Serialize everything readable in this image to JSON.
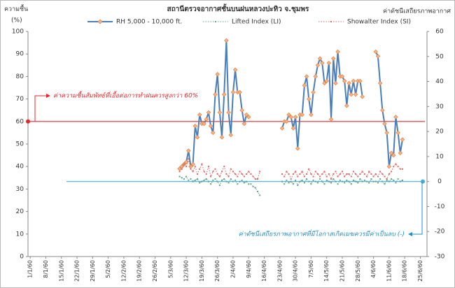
{
  "chart_data": {
    "type": "line",
    "title": "สถานีตรวจอากาศชั้นบนฝนหลวงปะทิว จ.ชุมพร",
    "y_label": [
      "ความชื้น",
      "(%)"
    ],
    "y2_label": "ค่าดัชนีเสถียรภาพอากาศ",
    "xlim": [
      -1,
      178
    ],
    "xticks": [
      {
        "value": 0,
        "label": "1/1/60"
      },
      {
        "value": 7,
        "label": "8/1/60"
      },
      {
        "value": 14,
        "label": "15/1/60"
      },
      {
        "value": 21,
        "label": "22/1/60"
      },
      {
        "value": 28,
        "label": "29/1/60"
      },
      {
        "value": 35,
        "label": "5/2/60"
      },
      {
        "value": 42,
        "label": "12/2/60"
      },
      {
        "value": 49,
        "label": "19/2/60"
      },
      {
        "value": 56,
        "label": "26/2/60"
      },
      {
        "value": 63,
        "label": "5/3/60"
      },
      {
        "value": 70,
        "label": "12/3/60"
      },
      {
        "value": 77,
        "label": "19/3/60"
      },
      {
        "value": 84,
        "label": "26/3/60"
      },
      {
        "value": 91,
        "label": "2/4/60"
      },
      {
        "value": 98,
        "label": "9/4/60"
      },
      {
        "value": 105,
        "label": "16/4/60"
      },
      {
        "value": 112,
        "label": "23/4/60"
      },
      {
        "value": 119,
        "label": "30/4/60"
      },
      {
        "value": 126,
        "label": "7/5/60"
      },
      {
        "value": 133,
        "label": "14/5/60"
      },
      {
        "value": 140,
        "label": "21/5/60"
      },
      {
        "value": 147,
        "label": "28/5/60"
      },
      {
        "value": 154,
        "label": "4/6/60"
      },
      {
        "value": 161,
        "label": "11/6/60"
      },
      {
        "value": 168,
        "label": "18/6/60"
      },
      {
        "value": 175,
        "label": "25/6/60"
      }
    ],
    "ylim": [
      0,
      100
    ],
    "yticks": [
      0,
      10,
      20,
      30,
      40,
      50,
      60,
      70,
      80,
      90,
      100
    ],
    "y2lim": [
      -30,
      60
    ],
    "y2ticks": [
      -30,
      -20,
      -10,
      0,
      10,
      20,
      30,
      40,
      50,
      60
    ],
    "x": [
      67,
      68,
      69,
      70,
      71,
      72,
      73,
      74,
      75,
      76,
      77,
      78,
      79,
      80,
      81,
      82,
      83,
      84,
      85,
      86,
      87,
      88,
      89,
      90,
      91,
      92,
      93,
      94,
      95,
      96,
      97,
      98,
      99,
      100,
      101,
      102,
      103,
      104,
      105,
      106,
      107,
      108,
      109,
      110,
      111,
      112,
      113,
      114,
      115,
      116,
      117,
      118,
      119,
      120,
      121,
      122,
      123,
      124,
      125,
      126,
      127,
      128,
      129,
      130,
      131,
      132,
      133,
      134,
      135,
      136,
      137,
      138,
      139,
      140,
      141,
      142,
      143,
      144,
      145,
      146,
      147,
      148,
      149,
      150,
      151,
      152,
      153,
      154,
      155,
      156,
      157,
      158,
      159,
      160,
      161,
      162,
      163,
      164,
      165,
      166,
      167
    ],
    "series": [
      {
        "name": "RH 5,000 - 10,000 ft.",
        "color": "#4a7ebb",
        "line_style": "solid",
        "marker": "diamond",
        "axis": "y",
        "values": [
          39,
          40,
          41,
          42,
          47,
          40,
          41,
          58,
          53,
          63,
          59,
          59,
          61,
          64,
          58,
          55,
          72,
          81,
          64,
          53,
          72,
          96,
          64,
          54,
          73,
          83,
          73,
          73,
          65,
          59,
          63,
          62,
          null,
          null,
          null,
          null,
          null,
          null,
          null,
          null,
          null,
          null,
          null,
          null,
          null,
          null,
          57,
          60,
          60,
          63,
          62,
          57,
          62,
          48,
          63,
          63,
          76,
          80,
          70,
          63,
          73,
          80,
          85,
          88,
          86,
          77,
          78,
          86,
          61,
          88,
          77,
          91,
          80,
          80,
          78,
          67,
          77,
          72,
          78,
          72,
          78,
          78,
          71,
          null,
          null,
          null,
          null,
          null,
          91,
          89,
          77,
          65,
          59,
          55,
          40,
          46,
          45,
          62,
          55,
          46,
          52
        ]
      },
      {
        "name": "Lifted Index (LI)",
        "color": "#5fa58a",
        "line_style": "dotted",
        "marker": "square",
        "axis": "y2",
        "values": [
          2,
          1.5,
          1,
          2,
          0.5,
          1,
          0,
          0.5,
          1,
          -0.5,
          0,
          0.5,
          1,
          0,
          -1,
          0.5,
          1,
          0,
          -1.5,
          0.5,
          1,
          0,
          -0.5,
          1,
          0,
          0.5,
          -1,
          0,
          0.5,
          -0.5,
          0,
          -1,
          -1,
          -2,
          -2.5,
          -4,
          -5.5,
          null,
          null,
          null,
          null,
          null,
          null,
          null,
          null,
          null,
          0,
          -1,
          0.5,
          -0.5,
          0,
          -1,
          0.5,
          -1.5,
          0,
          0.5,
          -0.5,
          1,
          0,
          -1,
          0.5,
          0,
          -0.5,
          1,
          0,
          -1,
          0.5,
          0,
          -0.5,
          1,
          0,
          -1,
          0.5,
          0,
          -0.5,
          0.5,
          0,
          -1,
          0.5,
          0,
          -0.5,
          1,
          0,
          0.5,
          0,
          -0.5,
          1,
          0,
          0,
          -0.5,
          1,
          0,
          -1,
          0.5,
          0,
          1,
          0.5,
          -0.5,
          1,
          0,
          0.5
        ]
      },
      {
        "name": "Showalter Index (SI)",
        "color": "#e06666",
        "line_style": "dotted",
        "marker": "square",
        "axis": "y2",
        "values": [
          4,
          5,
          7,
          6,
          9,
          5,
          4,
          6,
          3,
          5,
          7,
          4,
          3,
          6,
          2,
          4,
          5,
          3,
          2,
          4,
          6,
          3,
          2,
          5,
          4,
          3,
          2,
          4,
          3,
          2,
          3,
          4,
          3,
          2,
          1,
          1,
          4,
          null,
          null,
          null,
          null,
          null,
          null,
          null,
          null,
          null,
          3,
          2,
          4,
          3,
          1,
          3,
          4,
          2,
          3,
          4,
          2,
          3,
          5,
          3,
          2,
          4,
          3,
          2,
          3,
          4,
          2,
          3,
          1,
          3,
          4,
          2,
          3,
          4,
          2,
          3,
          3,
          2,
          4,
          3,
          2,
          3,
          4,
          3,
          2,
          4,
          3,
          2,
          3,
          2,
          4,
          3,
          2,
          1,
          3,
          4,
          6,
          7,
          6,
          5,
          5
        ]
      }
    ],
    "reference_lines": [
      {
        "axis": "y",
        "value": 60,
        "color": "#e8262b"
      },
      {
        "axis": "y2",
        "value": 0,
        "color": "#3fb2e0"
      }
    ],
    "annotations": [
      {
        "text": "ค่าความชื้นสัมพัทธ์ที่เอื้อต่อการทำฝนควรสูงกว่า 60%",
        "color": "#e8262b"
      },
      {
        "text": "ค่าดัชนีเสถียรภาพอากาศที่มีโอกาสเกิดเมฆควรมีค่าเป็นลบ (-)",
        "color": "#1f8fc4"
      }
    ]
  }
}
